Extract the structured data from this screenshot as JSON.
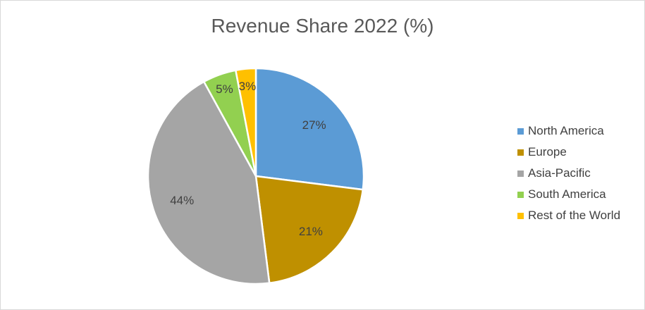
{
  "chart_data": {
    "type": "pie",
    "title": "Revenue Share 2022 (%)",
    "categories": [
      "North America",
      "Europe",
      "Asia-Pacific",
      "South America",
      "Rest of the World"
    ],
    "values": [
      27,
      21,
      44,
      5,
      3
    ],
    "data_labels": [
      "27%",
      "21%",
      "44%",
      "5%",
      "3%"
    ],
    "colors": [
      "#5b9bd5",
      "#bf9000",
      "#a5a5a5",
      "#92d050",
      "#ffc000"
    ],
    "legend_position": "right",
    "start_angle": "top, clockwise"
  }
}
